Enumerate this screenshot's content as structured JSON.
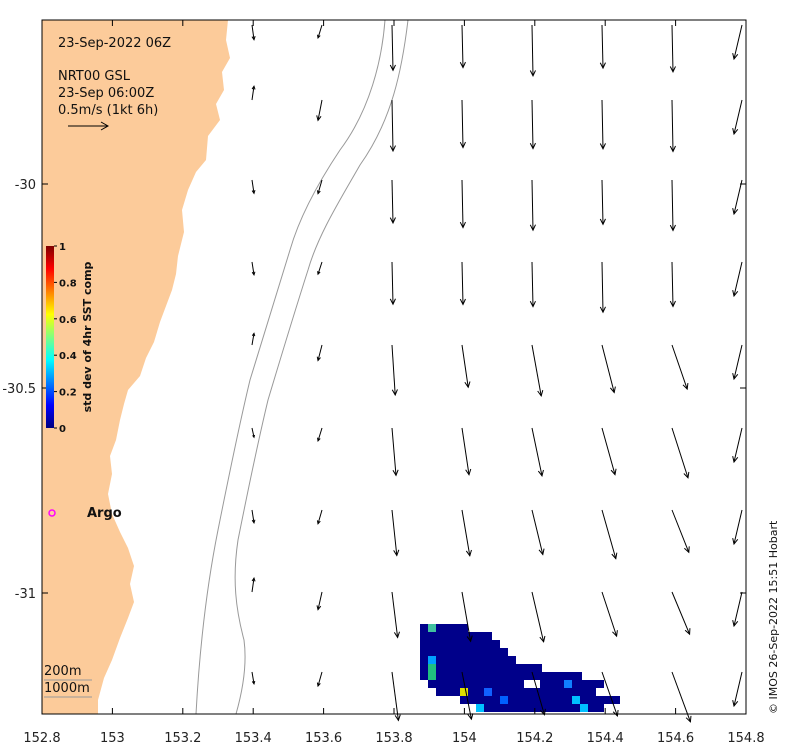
{
  "map": {
    "date_title": "23-Sep-2022 06Z",
    "product": "NRT00 GSL",
    "valid_time": "23-Sep 06:00Z",
    "scale_text": "0.5m/s (1kt 6h)",
    "argo_label": "Argo",
    "credit": "© IMOS 26-Sep-2022 15:51 Hobart",
    "land_color": "#fccb9a",
    "contour_labels": [
      "200m",
      "1000m"
    ],
    "x_ticks": [
      "152.8",
      "153",
      "153.2",
      "153.4",
      "153.6",
      "153.8",
      "154",
      "154.2",
      "154.4",
      "154.6",
      "154.8"
    ],
    "y_ticks": [
      "-30",
      "-30.5",
      "-31"
    ],
    "colorbar": {
      "label": "std dev of 4hr SST comp",
      "ticks": [
        "1",
        "0.8",
        "0.6",
        "0.4",
        "0.2",
        "0"
      ],
      "colors": [
        "#00007f",
        "#0000ff",
        "#0080ff",
        "#00ffff",
        "#80ff80",
        "#ffff00",
        "#ff8000",
        "#ff0000",
        "#7f0000"
      ]
    }
  }
}
